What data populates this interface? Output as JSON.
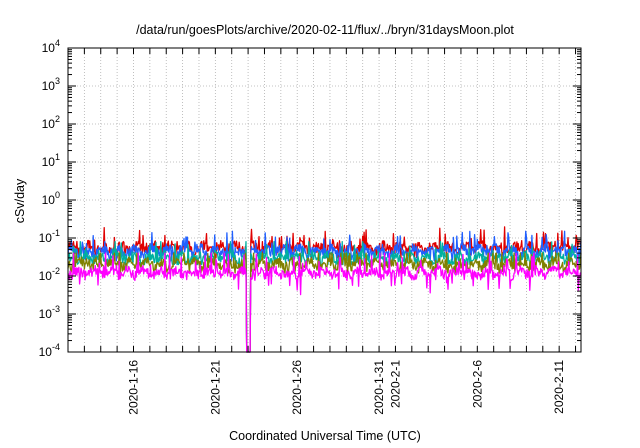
{
  "chart_data": {
    "type": "line",
    "title": "/data/run/goesPlots/archive/2020-02-11/flux/../bryn/31daysMoon.plot",
    "xlabel": "Coordinated Universal Time (UTC)",
    "ylabel": "cSv/day",
    "yscale": "log",
    "ylim": [
      0.0001,
      10000
    ],
    "xlim": [
      "2020-01-12",
      "2020-02-12 08:00"
    ],
    "grid": true,
    "legend": "none",
    "y_ticks": [
      {
        "base": "10",
        "exp": "-4"
      },
      {
        "base": "10",
        "exp": "-3"
      },
      {
        "base": "10",
        "exp": "-2"
      },
      {
        "base": "10",
        "exp": "-1"
      },
      {
        "base": "10",
        "exp": "0"
      },
      {
        "base": "10",
        "exp": "1"
      },
      {
        "base": "10",
        "exp": "2"
      },
      {
        "base": "10",
        "exp": "3"
      },
      {
        "base": "10",
        "exp": "4"
      }
    ],
    "x_ticks": [
      "2020-1-16",
      "2020-1-21",
      "2020-1-26",
      "2020-1-31",
      "2020-2-1",
      "2020-2-6",
      "2020-2-11"
    ],
    "dropout": {
      "start": "2020-01-22 22:00",
      "end": "2020-01-23 03:00",
      "value": 0.0001
    },
    "series": [
      {
        "color": "#e00000",
        "level": 0.055,
        "values_range": [
          0.03,
          0.2
        ]
      },
      {
        "color": "#2060ff",
        "level": 0.045,
        "values_range": [
          0.025,
          0.15
        ]
      },
      {
        "color": "#00b0a0",
        "level": 0.03,
        "values_range": [
          0.02,
          0.08
        ]
      },
      {
        "color": "#808000",
        "level": 0.02,
        "values_range": [
          0.012,
          0.04
        ]
      },
      {
        "color": "#ff00ff",
        "level": 0.012,
        "values_range": [
          0.003,
          0.04
        ]
      }
    ]
  }
}
